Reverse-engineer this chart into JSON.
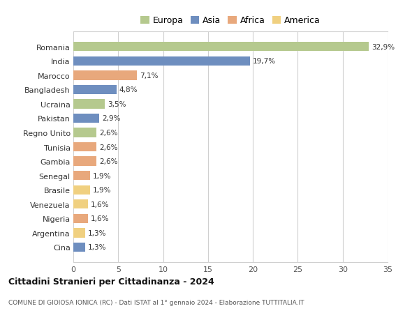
{
  "countries": [
    "Romania",
    "India",
    "Marocco",
    "Bangladesh",
    "Ucraina",
    "Pakistan",
    "Regno Unito",
    "Tunisia",
    "Gambia",
    "Senegal",
    "Brasile",
    "Venezuela",
    "Nigeria",
    "Argentina",
    "Cina"
  ],
  "values": [
    32.9,
    19.7,
    7.1,
    4.8,
    3.5,
    2.9,
    2.6,
    2.6,
    2.6,
    1.9,
    1.9,
    1.6,
    1.6,
    1.3,
    1.3
  ],
  "labels": [
    "32,9%",
    "19,7%",
    "7,1%",
    "4,8%",
    "3,5%",
    "2,9%",
    "2,6%",
    "2,6%",
    "2,6%",
    "1,9%",
    "1,9%",
    "1,6%",
    "1,6%",
    "1,3%",
    "1,3%"
  ],
  "colors": [
    "#b5c98e",
    "#6e8ebf",
    "#e8a87c",
    "#6e8ebf",
    "#b5c98e",
    "#6e8ebf",
    "#b5c98e",
    "#e8a87c",
    "#e8a87c",
    "#e8a87c",
    "#f0d080",
    "#f0d080",
    "#e8a87c",
    "#f0d080",
    "#6e8ebf"
  ],
  "continents": [
    "Europa",
    "Asia",
    "Africa",
    "America"
  ],
  "legend_colors": [
    "#b5c98e",
    "#6e8ebf",
    "#e8a87c",
    "#f0d080"
  ],
  "title": "Cittadini Stranieri per Cittadinanza - 2024",
  "subtitle": "COMUNE DI GIOIOSA IONICA (RC) - Dati ISTAT al 1° gennaio 2024 - Elaborazione TUTTITALIA.IT",
  "xlim": [
    0,
    35
  ],
  "xticks": [
    0,
    5,
    10,
    15,
    20,
    25,
    30,
    35
  ],
  "background_color": "#ffffff",
  "grid_color": "#d0d0d0",
  "bar_height": 0.65
}
